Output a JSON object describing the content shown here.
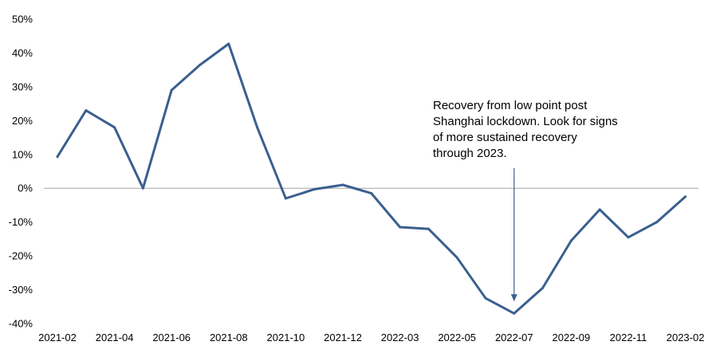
{
  "chart_data": {
    "type": "line",
    "title": "",
    "xlabel": "",
    "ylabel": "",
    "ylim": [
      -40,
      50
    ],
    "y_ticks": [
      50,
      40,
      30,
      20,
      10,
      0,
      -10,
      -20,
      -30,
      -40
    ],
    "y_tick_labels": [
      "50%",
      "40%",
      "30%",
      "20%",
      "10%",
      "0%",
      "-10%",
      "-20%",
      "-30%",
      "-40%"
    ],
    "x": [
      "2021-02",
      "2021-03",
      "2021-04",
      "2021-05",
      "2021-06",
      "2021-07",
      "2021-08",
      "2021-09",
      "2021-10",
      "2021-11",
      "2021-12",
      "2022-01",
      "2022-03",
      "2022-04",
      "2022-05",
      "2022-06",
      "2022-07",
      "2022-08",
      "2022-09",
      "2022-10",
      "2022-11",
      "2022-12",
      "2023-02"
    ],
    "x_tick_labels": [
      "2021-02",
      "2021-04",
      "2021-06",
      "2021-08",
      "2021-10",
      "2021-12",
      "2022-03",
      "2022-05",
      "2022-07",
      "2022-09",
      "2022-11",
      "2023-02"
    ],
    "series": [
      {
        "values": [
          9.3,
          23,
          18,
          0,
          29,
          36.5,
          42.7,
          18,
          -3,
          -0.3,
          1,
          -1.5,
          -11.5,
          -12,
          -20.5,
          -32.5,
          -37,
          -29.5,
          -15.5,
          -6.3,
          -14.5,
          -10,
          -2.5
        ]
      }
    ],
    "line_color": "#3A5F8F",
    "zero_line_color": "#A6A6A6",
    "grid": false,
    "legend": "none",
    "annotation": {
      "lines": [
        "Recovery from low point post",
        "Shanghai lockdown. Look for signs",
        "of more sustained recovery",
        "through 2023."
      ],
      "arrow_target_x": "2022-07",
      "arrow_target_y": -37
    }
  }
}
